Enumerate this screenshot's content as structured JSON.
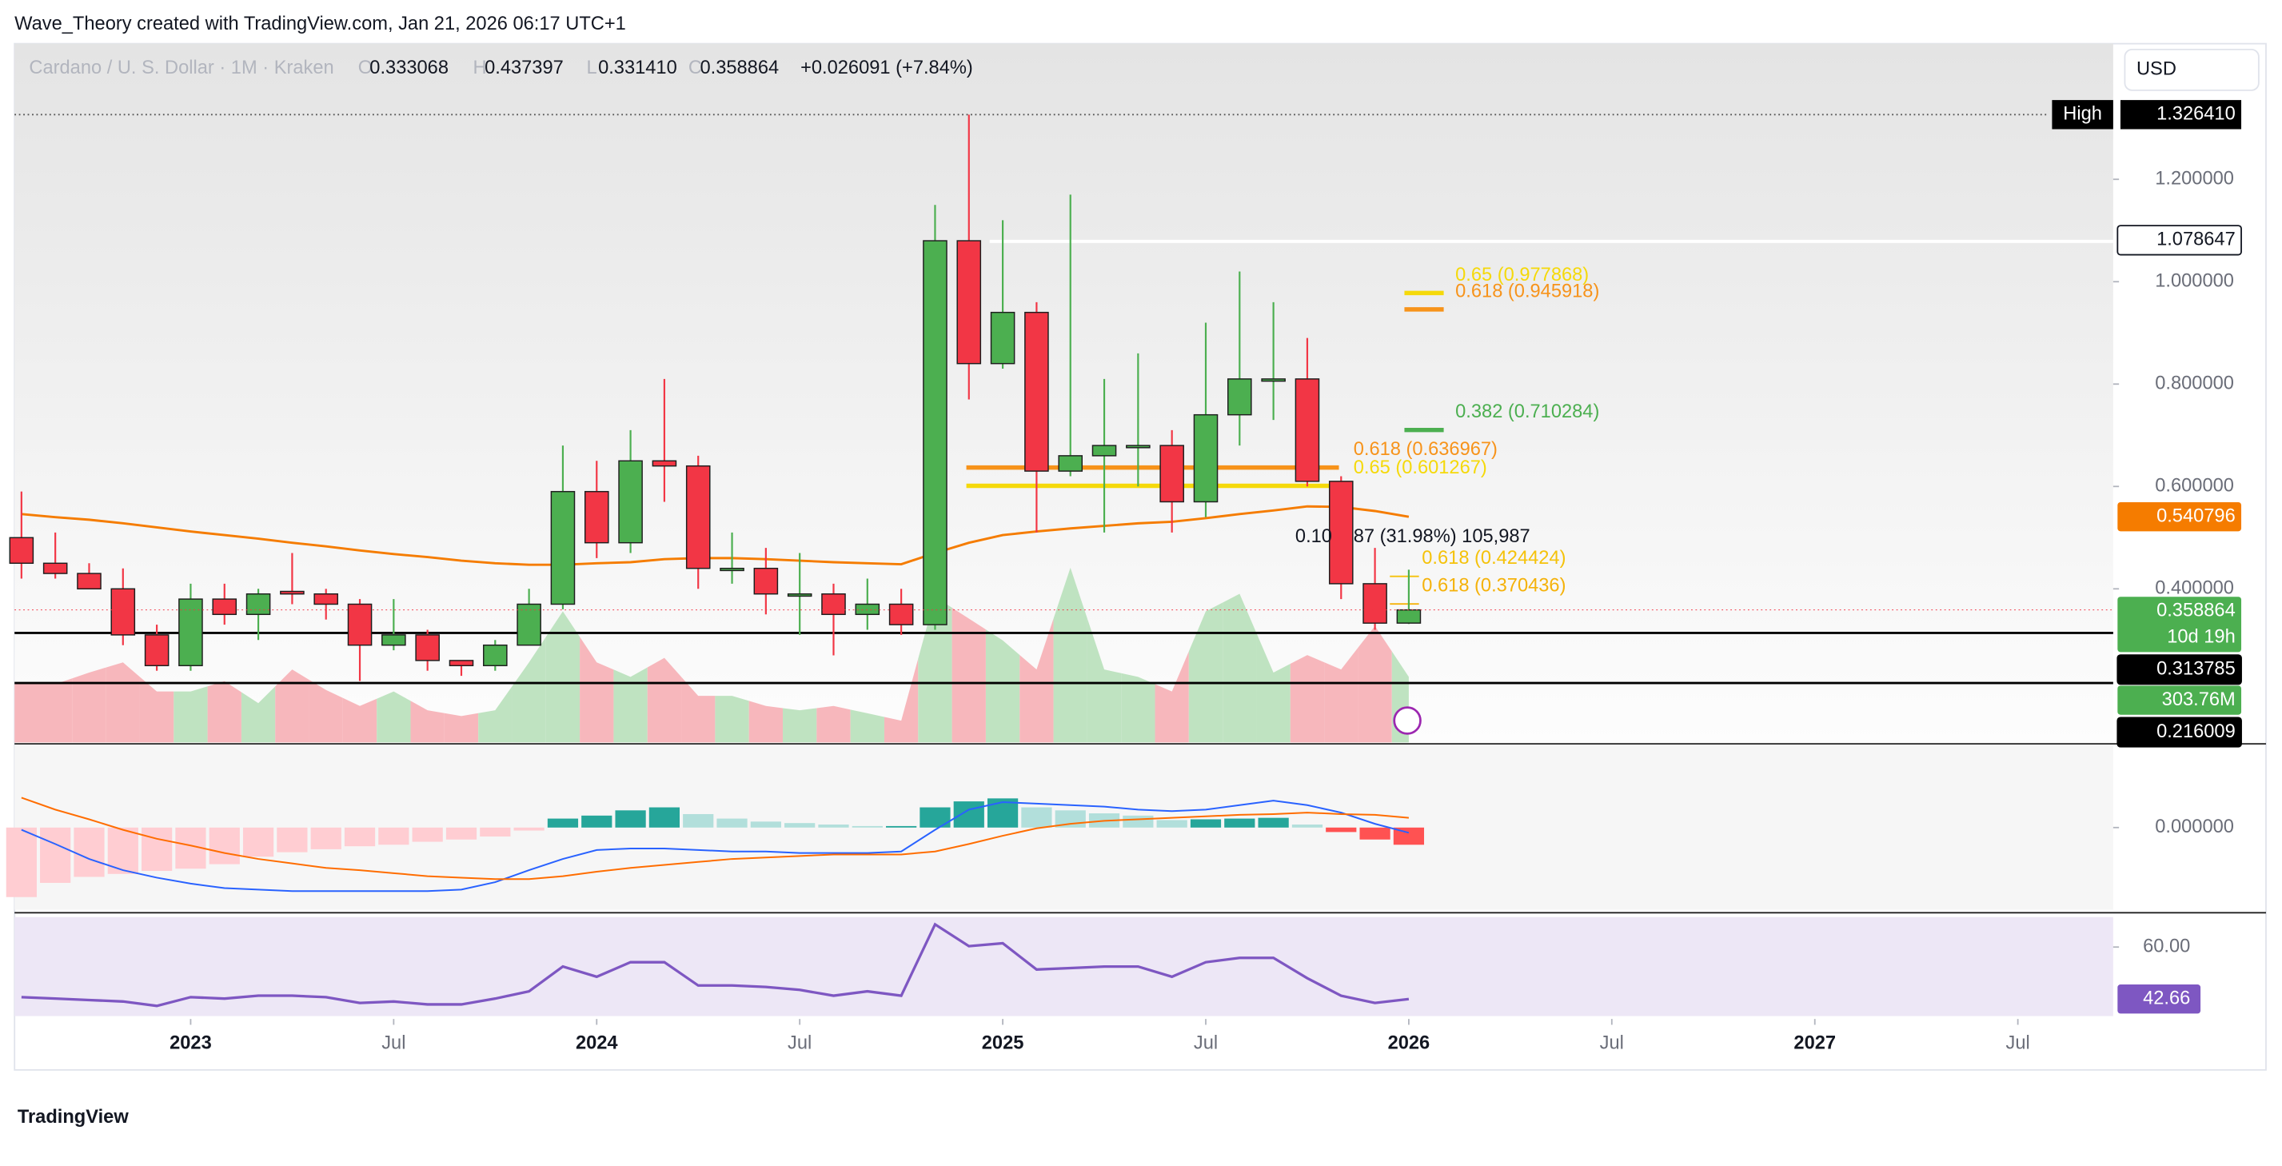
{
  "header": {
    "attribution": "Wave_Theory created with TradingView.com, Jan 21, 2026 06:17 UTC+1",
    "symbol": "Cardano / U. S. Dollar · 1M · Kraken",
    "ohlc": [
      {
        "label": "O",
        "value": "0.333068"
      },
      {
        "label": "H",
        "value": "0.437397"
      },
      {
        "label": "L",
        "value": "0.331410"
      },
      {
        "label": "C",
        "value": "0.358864"
      }
    ],
    "change": "+0.026091 (+7.84%)",
    "currency": "USD"
  },
  "chart_data": [
    {
      "type": "candlestick",
      "up_color": "#4caf50",
      "down_color": "#f23645",
      "x": [
        "2022-08",
        "2022-09",
        "2022-10",
        "2022-11",
        "2022-12",
        "2023-01",
        "2023-02",
        "2023-03",
        "2023-04",
        "2023-05",
        "2023-06",
        "2023-07",
        "2023-08",
        "2023-09",
        "2023-10",
        "2023-11",
        "2023-12",
        "2024-01",
        "2024-02",
        "2024-03",
        "2024-04",
        "2024-05",
        "2024-06",
        "2024-07",
        "2024-08",
        "2024-09",
        "2024-10",
        "2024-11",
        "2024-12",
        "2025-01",
        "2025-02",
        "2025-03",
        "2025-04",
        "2025-05",
        "2025-06",
        "2025-07",
        "2025-08",
        "2025-09",
        "2025-10",
        "2025-11",
        "2025-12",
        "2026-01"
      ],
      "open": [
        0.5,
        0.45,
        0.43,
        0.4,
        0.31,
        0.25,
        0.38,
        0.35,
        0.395,
        0.39,
        0.37,
        0.29,
        0.31,
        0.26,
        0.25,
        0.29,
        0.37,
        0.59,
        0.49,
        0.65,
        0.64,
        0.44,
        0.44,
        0.39,
        0.39,
        0.35,
        0.37,
        0.33,
        1.08,
        0.84,
        0.94,
        0.63,
        0.66,
        0.68,
        0.68,
        0.57,
        0.74,
        0.81,
        0.81,
        0.61,
        0.41,
        0.333068
      ],
      "high": [
        0.59,
        0.51,
        0.45,
        0.44,
        0.33,
        0.41,
        0.41,
        0.4,
        0.47,
        0.4,
        0.38,
        0.38,
        0.32,
        0.26,
        0.3,
        0.4,
        0.68,
        0.65,
        0.71,
        0.81,
        0.66,
        0.51,
        0.48,
        0.47,
        0.41,
        0.42,
        0.4,
        1.15,
        1.32641,
        1.12,
        0.96,
        1.17,
        0.81,
        0.86,
        0.71,
        0.92,
        1.02,
        0.96,
        0.89,
        0.62,
        0.48,
        0.437397
      ],
      "low": [
        0.42,
        0.42,
        0.4,
        0.29,
        0.24,
        0.24,
        0.33,
        0.3,
        0.37,
        0.34,
        0.22,
        0.28,
        0.24,
        0.23,
        0.24,
        0.29,
        0.36,
        0.46,
        0.47,
        0.57,
        0.4,
        0.41,
        0.35,
        0.31,
        0.27,
        0.32,
        0.31,
        0.32,
        0.77,
        0.83,
        0.51,
        0.62,
        0.51,
        0.6,
        0.51,
        0.54,
        0.68,
        0.73,
        0.6,
        0.38,
        0.32,
        0.33141
      ],
      "close": [
        0.45,
        0.43,
        0.4,
        0.31,
        0.25,
        0.38,
        0.35,
        0.39,
        0.39,
        0.37,
        0.29,
        0.31,
        0.26,
        0.25,
        0.29,
        0.37,
        0.59,
        0.49,
        0.65,
        0.64,
        0.44,
        0.44,
        0.39,
        0.39,
        0.35,
        0.37,
        0.33,
        1.08,
        0.84,
        0.94,
        0.63,
        0.66,
        0.68,
        0.68,
        0.57,
        0.74,
        0.81,
        0.81,
        0.61,
        0.41,
        0.333,
        0.358864
      ],
      "ylim": [
        0.1,
        1.465
      ],
      "yticks": [
        {
          "value": 0.4,
          "label": "0.400000"
        },
        {
          "value": 0.6,
          "label": "0.600000"
        },
        {
          "value": 0.8,
          "label": "0.800000"
        },
        {
          "value": 1.0,
          "label": "1.000000"
        },
        {
          "value": 1.2,
          "label": "1.200000"
        }
      ],
      "xticks": [
        {
          "value": "2023-01",
          "label": "2023"
        },
        {
          "value": "2023-07",
          "label": "Jul"
        },
        {
          "value": "2024-01",
          "label": "2024"
        },
        {
          "value": "2024-07",
          "label": "Jul"
        },
        {
          "value": "2025-01",
          "label": "2025"
        },
        {
          "value": "2025-07",
          "label": "Jul"
        },
        {
          "value": "2026-01",
          "label": "2026"
        },
        {
          "value": "2026-07",
          "label": "Jul"
        },
        {
          "value": "2027-01",
          "label": "2027"
        },
        {
          "value": "2027-07",
          "label": "Jul"
        }
      ],
      "ema": {
        "color": "#f57c00",
        "values": [
          0.546,
          0.54,
          0.535,
          0.528,
          0.52,
          0.512,
          0.505,
          0.498,
          0.49,
          0.483,
          0.475,
          0.468,
          0.462,
          0.455,
          0.45,
          0.447,
          0.447,
          0.45,
          0.452,
          0.458,
          0.46,
          0.46,
          0.458,
          0.455,
          0.452,
          0.45,
          0.448,
          0.47,
          0.49,
          0.505,
          0.512,
          0.518,
          0.523,
          0.528,
          0.531,
          0.538,
          0.546,
          0.553,
          0.561,
          0.56,
          0.552,
          0.540796
        ]
      },
      "volume": {
        "up_color": "#bfe3c1",
        "down_color": "#f7b7bc",
        "values": [
          270,
          270,
          324,
          371,
          236,
          236,
          284,
          182,
          338,
          243,
          169,
          236,
          149,
          122,
          149,
          371,
          608,
          371,
          304,
          392,
          216,
          216,
          169,
          149,
          169,
          135,
          101,
          675,
          574,
          473,
          338,
          810,
          338,
          304,
          236,
          608,
          689,
          324,
          405,
          338,
          540,
          303.76
        ],
        "last_label": "303.76M"
      },
      "high_text": "High",
      "high_value": {
        "value": 1.32641,
        "label": "1.326410"
      },
      "levels": [
        {
          "value": 1.078647,
          "color": "#ffffff"
        },
        {
          "value": 0.313785,
          "color": "#000000"
        },
        {
          "value": 0.216009,
          "color": "#000000"
        }
      ],
      "countdown": "10d 19h",
      "fib": [
        {
          "label": "0.65 (0.977868)",
          "value": 0.977868,
          "color": "#f5d90a"
        },
        {
          "label": "0.618 (0.945918)",
          "value": 0.945918,
          "color": "#f7931a"
        },
        {
          "label": "0.382 (0.710284)",
          "value": 0.710284,
          "color": "#4caf50"
        },
        {
          "label": "0.618 (0.636967)",
          "value": 0.636967,
          "color": "#f7931a"
        },
        {
          "label": "0.65 (0.601267)",
          "value": 0.601267,
          "color": "#f5d90a"
        },
        {
          "label": "0.618 (0.424424)",
          "value": 0.424424,
          "color": "#f5c20a"
        },
        {
          "label": "0.618 (0.370436)",
          "value": 0.370436,
          "color": "#f5b20a"
        }
      ],
      "measure": [
        "0.10",
        "87 (31.98%) 105,987"
      ]
    },
    {
      "type": "macd",
      "ylim": [
        -0.11,
        0.11
      ],
      "yticks": [
        {
          "value": 0,
          "label": "0.000000"
        }
      ],
      "histogram": {
        "colors": {
          "grow_up": "#26a69a",
          "fall_up": "#b2dfdb",
          "grow_down": "#ffcdd2",
          "fall_down": "#ff5252"
        },
        "values": [
          -0.093,
          -0.074,
          -0.066,
          -0.062,
          -0.058,
          -0.055,
          -0.049,
          -0.039,
          -0.033,
          -0.029,
          -0.025,
          -0.023,
          -0.019,
          -0.016,
          -0.012,
          -0.004,
          0.012,
          0.016,
          0.023,
          0.027,
          0.018,
          0.012,
          0.008,
          0.006,
          0.004,
          0.002,
          0.002,
          0.027,
          0.035,
          0.039,
          0.027,
          0.023,
          0.019,
          0.016,
          0.01,
          0.011,
          0.012,
          0.013,
          0.004,
          -0.006,
          -0.016,
          -0.023
        ]
      },
      "macd": {
        "color": "#2962ff",
        "values": [
          -0.003,
          -0.022,
          -0.042,
          -0.057,
          -0.067,
          -0.075,
          -0.081,
          -0.083,
          -0.085,
          -0.085,
          -0.085,
          -0.085,
          -0.085,
          -0.083,
          -0.073,
          -0.057,
          -0.042,
          -0.03,
          -0.028,
          -0.028,
          -0.03,
          -0.032,
          -0.032,
          -0.034,
          -0.034,
          -0.034,
          -0.032,
          -0.003,
          0.024,
          0.034,
          0.032,
          0.03,
          0.028,
          0.024,
          0.022,
          0.024,
          0.03,
          0.036,
          0.03,
          0.02,
          0.005,
          -0.007
        ]
      },
      "signal": {
        "color": "#ff6d00",
        "values": [
          0.04,
          0.024,
          0.011,
          -0.003,
          -0.015,
          -0.024,
          -0.034,
          -0.042,
          -0.048,
          -0.054,
          -0.057,
          -0.061,
          -0.065,
          -0.067,
          -0.069,
          -0.069,
          -0.065,
          -0.059,
          -0.054,
          -0.05,
          -0.046,
          -0.042,
          -0.04,
          -0.038,
          -0.036,
          -0.036,
          -0.036,
          -0.032,
          -0.022,
          -0.011,
          -0.001,
          0.005,
          0.009,
          0.011,
          0.013,
          0.015,
          0.017,
          0.018,
          0.02,
          0.018,
          0.017,
          0.013
        ]
      }
    },
    {
      "type": "line",
      "color": "#7e57c2",
      "ylim": [
        36,
        70
      ],
      "yticks": [
        {
          "value": 60,
          "label": "60.00"
        }
      ],
      "values": [
        43.29,
        42.8,
        42.32,
        41.83,
        40.37,
        43.29,
        42.8,
        43.77,
        43.77,
        43.29,
        41.34,
        41.83,
        40.86,
        40.86,
        42.8,
        45.23,
        53.49,
        50.09,
        54.94,
        54.94,
        47.17,
        47.17,
        46.69,
        45.71,
        43.77,
        45.23,
        43.77,
        67.57,
        60.29,
        61.26,
        52.51,
        53.0,
        53.49,
        53.49,
        50.09,
        54.94,
        56.4,
        56.4,
        49.6,
        43.77,
        41.34,
        42.66
      ]
    }
  ],
  "footer": {
    "logo": "TradingView"
  }
}
